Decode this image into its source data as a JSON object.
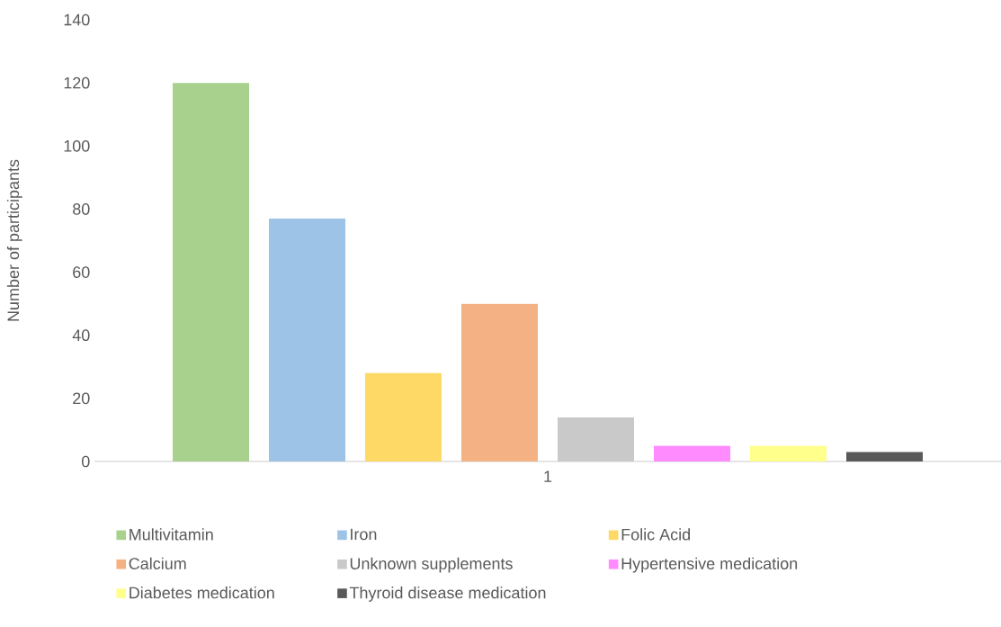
{
  "chart_data": {
    "type": "bar",
    "ylabel": "Number of participants",
    "categories": [
      "1"
    ],
    "ylim": [
      0,
      140
    ],
    "yticks": [
      0,
      20,
      40,
      60,
      80,
      100,
      120,
      140
    ],
    "legend": "bottom",
    "series": [
      {
        "name": "Multivitamin",
        "color": "#a9d18e",
        "values": [
          120
        ]
      },
      {
        "name": "Iron",
        "color": "#9dc3e6",
        "values": [
          77
        ]
      },
      {
        "name": "Folic Acid",
        "color": "#ffd966",
        "values": [
          28
        ]
      },
      {
        "name": "Calcium",
        "color": "#f4b183",
        "values": [
          50
        ]
      },
      {
        "name": "Unknown supplements",
        "color": "#c9c9c9",
        "values": [
          14
        ]
      },
      {
        "name": "Hypertensive medication",
        "color": "#ff8bff",
        "values": [
          5
        ]
      },
      {
        "name": "Diabetes medication",
        "color": "#ffff8b",
        "values": [
          5
        ]
      },
      {
        "name": "Thyroid disease medication",
        "color": "#595959",
        "values": [
          3
        ]
      }
    ]
  }
}
